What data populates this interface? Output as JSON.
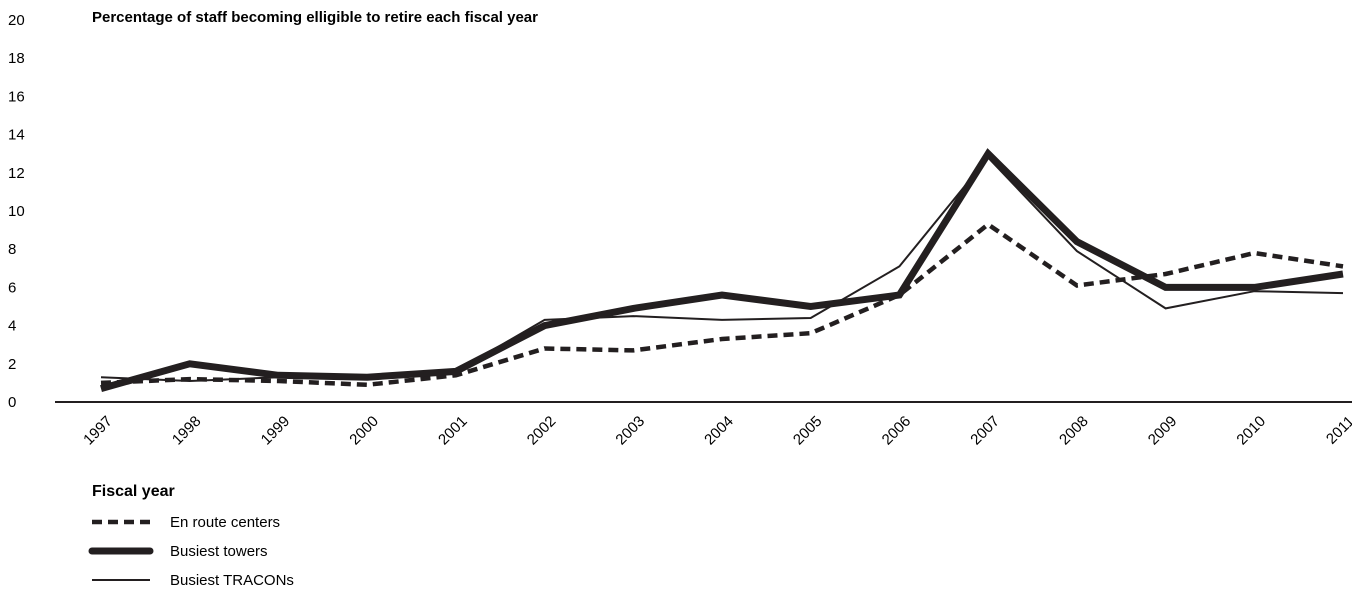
{
  "chart_data": {
    "type": "line",
    "title": "Percentage of staff becoming elligible to retire each fiscal year",
    "xlabel": "Fiscal year",
    "ylabel": "",
    "categories": [
      "1997",
      "1998",
      "1999",
      "2000",
      "2001",
      "2002",
      "2003",
      "2004",
      "2005",
      "2006",
      "2007",
      "2008",
      "2009",
      "2010",
      "2011"
    ],
    "ylim": [
      0,
      20
    ],
    "yticks": [
      "0",
      "2",
      "4",
      "6",
      "8",
      "10",
      "12",
      "14",
      "16",
      "18",
      "20"
    ],
    "grid": false,
    "legend_position": "bottom-left",
    "series": [
      {
        "name": "En route centers",
        "style": "dashed",
        "color": "#231f20",
        "values": [
          1.0,
          1.2,
          1.1,
          0.9,
          1.4,
          2.8,
          2.7,
          3.3,
          3.6,
          5.6,
          9.3,
          6.1,
          6.7,
          7.8,
          7.1
        ]
      },
      {
        "name": "Busiest towers",
        "style": "thick",
        "color": "#231f20",
        "values": [
          0.7,
          2.0,
          1.4,
          1.3,
          1.6,
          4.0,
          4.9,
          5.6,
          5.0,
          5.6,
          13.0,
          8.4,
          6.0,
          6.0,
          6.7
        ]
      },
      {
        "name": "Busiest TRACONs",
        "style": "thin",
        "color": "#231f20",
        "values": [
          1.3,
          1.1,
          1.3,
          1.3,
          1.6,
          4.3,
          4.5,
          4.3,
          4.4,
          7.1,
          12.8,
          7.9,
          4.9,
          5.8,
          5.7
        ]
      }
    ]
  }
}
